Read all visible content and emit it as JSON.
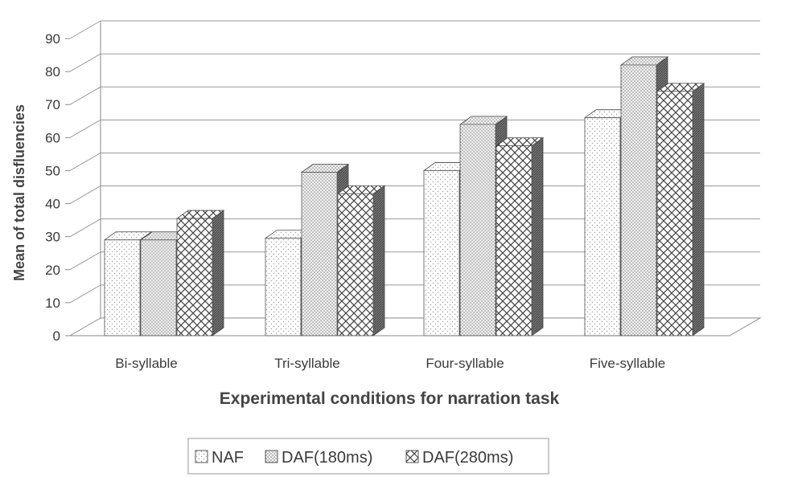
{
  "chart_data": {
    "type": "bar",
    "title": "",
    "xlabel": "Experimental conditions for narration task",
    "ylabel": "Mean of total disfluencies",
    "categories": [
      "Bi-syllable",
      "Tri-syllable",
      "Four-syllable",
      "Five-syllable"
    ],
    "series": [
      {
        "name": "NAF",
        "values": [
          29,
          29.5,
          50,
          66
        ]
      },
      {
        "name": "DAF(180ms)",
        "values": [
          29,
          49.5,
          64,
          82
        ]
      },
      {
        "name": "DAF(280ms)",
        "values": [
          35.5,
          43,
          57.5,
          74
        ]
      }
    ],
    "ylim": [
      0,
      90
    ],
    "yticks": [
      0,
      10,
      20,
      30,
      40,
      50,
      60,
      70,
      80,
      90
    ],
    "grid": true,
    "legend": "bottom",
    "style": "3d-clustered-bar"
  }
}
